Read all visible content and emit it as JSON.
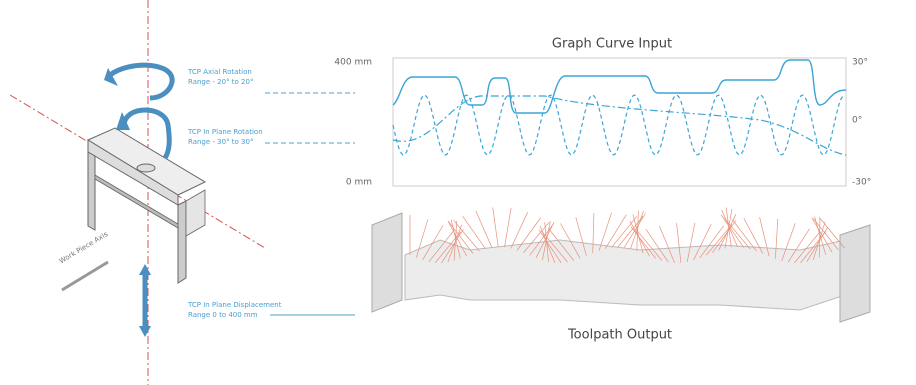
{
  "annotations": [
    {
      "title": "TCP Axial Rotation",
      "range": "Range - 20° to 20°"
    },
    {
      "title": "TCP In Plane Rotation",
      "range": "Range - 30° to 30°"
    },
    {
      "title": "TCP In Plane Displacement",
      "range": "Range 0 to 400 mm"
    }
  ],
  "work_piece_axis": "Work Piece Axis",
  "graph": {
    "title": "Graph Curve Input",
    "left_labels": [
      "400 mm",
      "0 mm"
    ],
    "right_labels": [
      "30°",
      "0°",
      "-30°"
    ]
  },
  "toolpath": {
    "title": "Toolpath Output"
  }
}
